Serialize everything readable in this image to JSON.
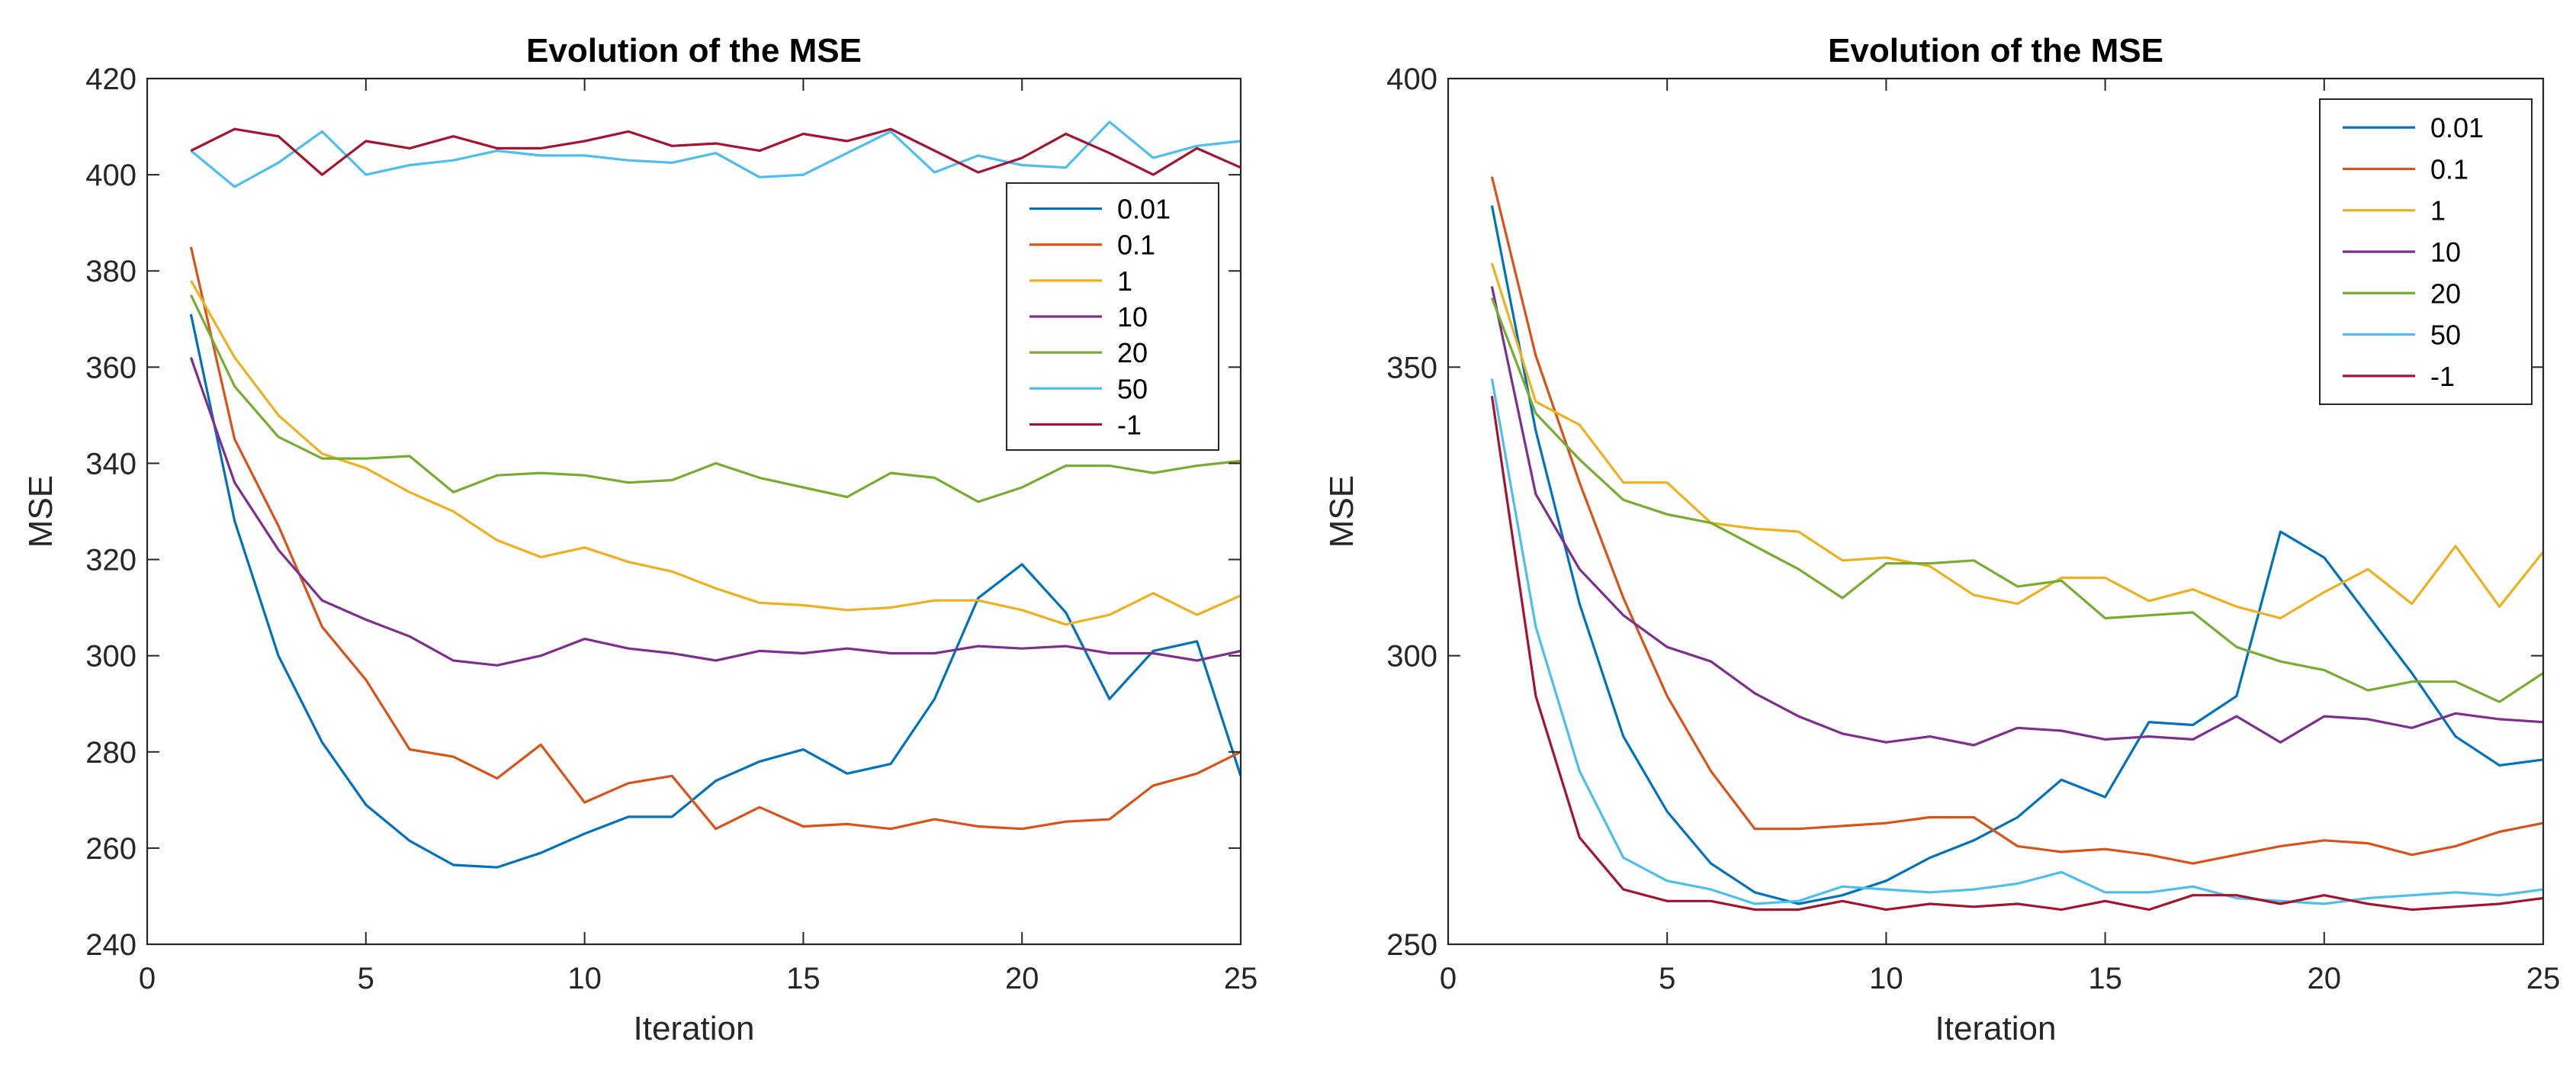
{
  "chart_data": [
    {
      "type": "line",
      "title": "Evolution of the MSE",
      "xlabel": "Iteration",
      "ylabel": "MSE",
      "xlim": [
        0,
        25
      ],
      "ylim": [
        240,
        420
      ],
      "xticks": [
        0,
        5,
        10,
        15,
        20,
        25
      ],
      "yticks": [
        240,
        260,
        280,
        300,
        320,
        340,
        360,
        380,
        400,
        420
      ],
      "legend_position": "top-right",
      "grid": false,
      "x": [
        1,
        2,
        3,
        4,
        5,
        6,
        7,
        8,
        9,
        10,
        11,
        12,
        13,
        14,
        15,
        16,
        17,
        18,
        19,
        20,
        21,
        22,
        23,
        24,
        25
      ],
      "series": [
        {
          "name": "0.01",
          "color": "#0072BD",
          "values": [
            371,
            328,
            300,
            282,
            269,
            261.5,
            256.5,
            256,
            259,
            263,
            266.5,
            266.5,
            274,
            278,
            280.5,
            275.5,
            277.5,
            291,
            312,
            319,
            309,
            291,
            301,
            303,
            275
          ]
        },
        {
          "name": "0.1",
          "color": "#D95319",
          "values": [
            385,
            345,
            327,
            306,
            295,
            280.5,
            279,
            274.5,
            281.5,
            269.5,
            273.5,
            275,
            264,
            268.5,
            264.5,
            265,
            264,
            266,
            264.5,
            264,
            265.5,
            266,
            273,
            275.5,
            280
          ]
        },
        {
          "name": "1",
          "color": "#EDB120",
          "values": [
            378,
            362,
            350,
            342,
            339,
            334,
            330,
            324,
            320.5,
            322.5,
            319.5,
            317.5,
            314,
            311,
            310.5,
            309.5,
            310,
            311.5,
            311.5,
            309.5,
            306.5,
            308.5,
            313,
            308.5,
            312.5
          ]
        },
        {
          "name": "10",
          "color": "#7E2F8E",
          "values": [
            362,
            336,
            322,
            311.5,
            307.5,
            304,
            299,
            298,
            300,
            303.5,
            301.5,
            300.5,
            299,
            301,
            300.5,
            301.5,
            300.5,
            300.5,
            302,
            301.5,
            302,
            300.5,
            300.5,
            299,
            301
          ]
        },
        {
          "name": "20",
          "color": "#77AC30",
          "values": [
            375,
            356,
            345.5,
            341,
            341,
            341.5,
            334,
            337.5,
            338,
            337.5,
            336,
            336.5,
            340,
            337,
            335,
            333,
            338,
            337,
            332,
            335,
            339.5,
            339.5,
            338,
            339.5,
            340.5
          ]
        },
        {
          "name": "50",
          "color": "#4DBEEE",
          "values": [
            405,
            397.5,
            402.5,
            409,
            400,
            402,
            403,
            405,
            404,
            404,
            403,
            402.5,
            404.5,
            399.5,
            400,
            404.5,
            409,
            400.5,
            404,
            402,
            401.5,
            411,
            403.5,
            406,
            407
          ]
        },
        {
          "name": "-1",
          "color": "#A2142F",
          "values": [
            405,
            409.5,
            408,
            400,
            407,
            405.5,
            408,
            405.5,
            405.5,
            407,
            409,
            406,
            406.5,
            405,
            408.5,
            407,
            409.5,
            405,
            400.5,
            403.5,
            408.5,
            404.5,
            400,
            405.5,
            401.5
          ]
        }
      ]
    },
    {
      "type": "line",
      "title": "Evolution of the MSE",
      "xlabel": "Iteration",
      "ylabel": "MSE",
      "xlim": [
        0,
        25
      ],
      "ylim": [
        250,
        400
      ],
      "xticks": [
        0,
        5,
        10,
        15,
        20,
        25
      ],
      "yticks": [
        250,
        300,
        350,
        400
      ],
      "legend_position": "top-right",
      "grid": false,
      "x": [
        1,
        2,
        3,
        4,
        5,
        6,
        7,
        8,
        9,
        10,
        11,
        12,
        13,
        14,
        15,
        16,
        17,
        18,
        19,
        20,
        21,
        22,
        23,
        24,
        25
      ],
      "series": [
        {
          "name": "0.01",
          "color": "#0072BD",
          "values": [
            378,
            339,
            309,
            286,
            273,
            264,
            259,
            257,
            258.5,
            261,
            265,
            268,
            272,
            278.5,
            275.5,
            288.5,
            288,
            293,
            321.5,
            317,
            307,
            297,
            286,
            281,
            282
          ]
        },
        {
          "name": "0.1",
          "color": "#D95319",
          "values": [
            383,
            352,
            330,
            310,
            293,
            280,
            270,
            270,
            270.5,
            271,
            272,
            272,
            267,
            266,
            266.5,
            265.5,
            264,
            265.5,
            267,
            268,
            267.5,
            265.5,
            267,
            269.5,
            271
          ]
        },
        {
          "name": "1",
          "color": "#EDB120",
          "values": [
            368,
            344,
            340,
            330,
            330,
            323,
            322,
            321.5,
            316.5,
            317,
            315.5,
            310.5,
            309,
            313.5,
            313.5,
            309.5,
            311.5,
            308.5,
            306.5,
            311,
            315,
            309,
            319,
            308.5,
            318
          ]
        },
        {
          "name": "10",
          "color": "#7E2F8E",
          "values": [
            364,
            328,
            315,
            307,
            301.5,
            299,
            293.5,
            289.5,
            286.5,
            285,
            286,
            284.5,
            287.5,
            287,
            285.5,
            286,
            285.5,
            289.5,
            285,
            289.5,
            289,
            287.5,
            290,
            289,
            288.5
          ]
        },
        {
          "name": "20",
          "color": "#77AC30",
          "values": [
            362,
            342,
            334,
            327,
            324.5,
            323,
            319,
            315,
            310,
            316,
            316,
            316.5,
            312,
            313,
            306.5,
            307,
            307.5,
            301.5,
            299,
            297.5,
            294,
            295.5,
            295.5,
            292,
            297
          ]
        },
        {
          "name": "50",
          "color": "#4DBEEE",
          "values": [
            348,
            305,
            280,
            265,
            261,
            259.5,
            257,
            257.5,
            260,
            259.5,
            259,
            259.5,
            260.5,
            262.5,
            259,
            259,
            260,
            258,
            257.5,
            257,
            258,
            258.5,
            259,
            258.5,
            259.5
          ]
        },
        {
          "name": "-1",
          "color": "#A2142F",
          "values": [
            345,
            293,
            268.5,
            259.5,
            257.5,
            257.5,
            256,
            256,
            257.5,
            256,
            257,
            256.5,
            257,
            256,
            257.5,
            256,
            258.5,
            258.5,
            257,
            258.5,
            257,
            256,
            256.5,
            257,
            258
          ]
        }
      ]
    }
  ]
}
